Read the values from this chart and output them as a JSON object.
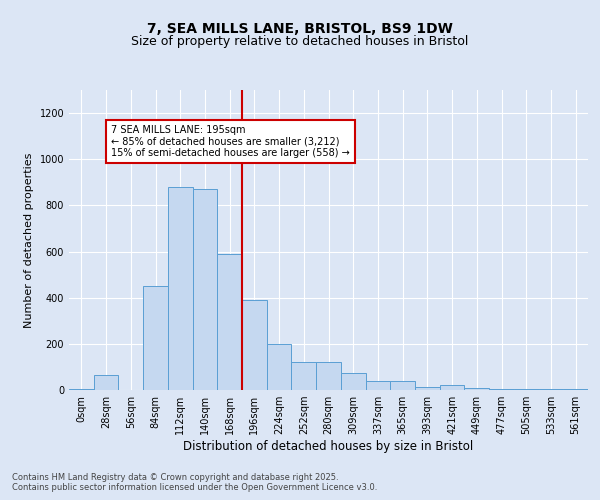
{
  "title1": "7, SEA MILLS LANE, BRISTOL, BS9 1DW",
  "title2": "Size of property relative to detached houses in Bristol",
  "xlabel": "Distribution of detached houses by size in Bristol",
  "ylabel": "Number of detached properties",
  "bin_labels": [
    "0sqm",
    "28sqm",
    "56sqm",
    "84sqm",
    "112sqm",
    "140sqm",
    "168sqm",
    "196sqm",
    "224sqm",
    "252sqm",
    "280sqm",
    "309sqm",
    "337sqm",
    "365sqm",
    "393sqm",
    "421sqm",
    "449sqm",
    "477sqm",
    "505sqm",
    "533sqm",
    "561sqm"
  ],
  "bar_values": [
    5,
    65,
    0,
    450,
    880,
    870,
    590,
    390,
    200,
    120,
    120,
    75,
    40,
    40,
    15,
    20,
    10,
    5,
    5,
    5,
    5
  ],
  "bar_color": "#c5d8f0",
  "bar_edge_color": "#5a9fd4",
  "vline_x_index": 7,
  "vline_color": "#cc0000",
  "annotation_text": "7 SEA MILLS LANE: 195sqm\n← 85% of detached houses are smaller (3,212)\n15% of semi-detached houses are larger (558) →",
  "annotation_box_color": "#ffffff",
  "annotation_box_edge": "#cc0000",
  "ylim": [
    0,
    1300
  ],
  "yticks": [
    0,
    200,
    400,
    600,
    800,
    1000,
    1200
  ],
  "background_color": "#dce6f5",
  "plot_bg_color": "#dce6f5",
  "footer": "Contains HM Land Registry data © Crown copyright and database right 2025.\nContains public sector information licensed under the Open Government Licence v3.0.",
  "title1_fontsize": 10,
  "title2_fontsize": 9,
  "xlabel_fontsize": 8.5,
  "ylabel_fontsize": 8,
  "tick_fontsize": 7,
  "annotation_fontsize": 7,
  "footer_fontsize": 6
}
